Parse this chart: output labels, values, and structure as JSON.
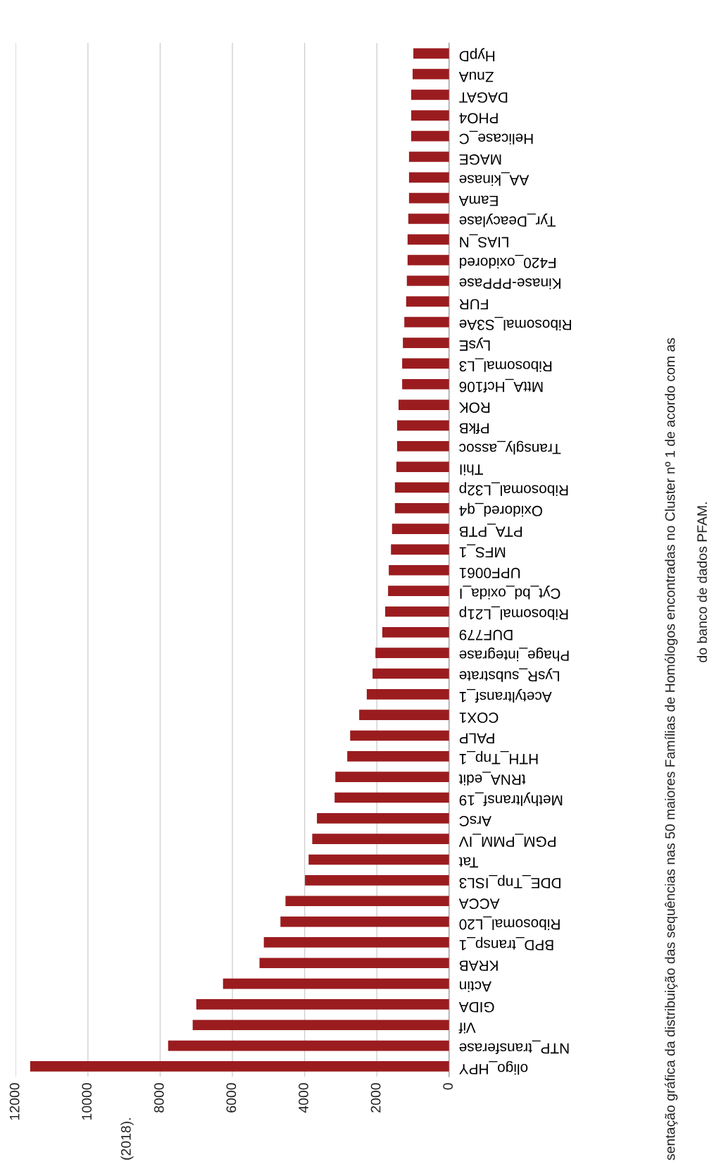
{
  "chart_data": {
    "type": "bar",
    "orientation": "horizontal",
    "categories": [
      "HypD",
      "ZnuA",
      "DAGAT",
      "PHO4",
      "Helicase_C",
      "MAGE",
      "AA_kinase",
      "EamA",
      "Tyr_Deacylase",
      "LIAS_N",
      "F420_oxidored",
      "Kinase-PPPase",
      "FUR",
      "Ribosomal_S3Ae",
      "LysE",
      "Ribosomal_L3",
      "MttA_Hcf106",
      "ROK",
      "PfkB",
      "Transgly_assoc",
      "ThiI",
      "Ribosomal_L32p",
      "Oxidored_q4",
      "PTA_PTB",
      "MFS_1",
      "UPF0061",
      "Cyt_bd_oxida_I",
      "Ribosomal_L21p",
      "DUF779",
      "Phage_integrase",
      "LysR_substrate",
      "Acetyltransf_1",
      "COX1",
      "PALP",
      "HTH_Tnp_1",
      "tRNA_edit",
      "Methyltransf_19",
      "ArsC",
      "PGM_PMM_IV",
      "Tat",
      "DDE_Tnp_ISL3",
      "ACCA",
      "Ribosomal_L20",
      "BPD_transp_1",
      "KRAB",
      "Actin",
      "GIDA",
      "Vif",
      "NTP_transferase",
      "oligo_HPY"
    ],
    "values": [
      990,
      1010,
      1050,
      1050,
      1050,
      1110,
      1110,
      1110,
      1130,
      1150,
      1150,
      1170,
      1190,
      1240,
      1280,
      1300,
      1300,
      1400,
      1440,
      1440,
      1460,
      1500,
      1500,
      1580,
      1610,
      1670,
      1690,
      1770,
      1850,
      2040,
      2120,
      2280,
      2490,
      2740,
      2820,
      3150,
      3170,
      3660,
      3790,
      3890,
      3990,
      4530,
      4670,
      5130,
      5250,
      6260,
      7000,
      7100,
      7780,
      11600
    ],
    "color": "#9b1c1f",
    "xlim": [
      12000,
      0
    ],
    "xticks": [
      0,
      2000,
      4000,
      6000,
      8000,
      10000,
      12000
    ],
    "grid": "x",
    "annotations": [
      "(2018).",
      "sentação gráfica da distribuição das sequências nas 50 maiores Famílias de Homólogos encontradas no Cluster nº 1 de acordo com as",
      "do banco de dados PFAM."
    ]
  }
}
